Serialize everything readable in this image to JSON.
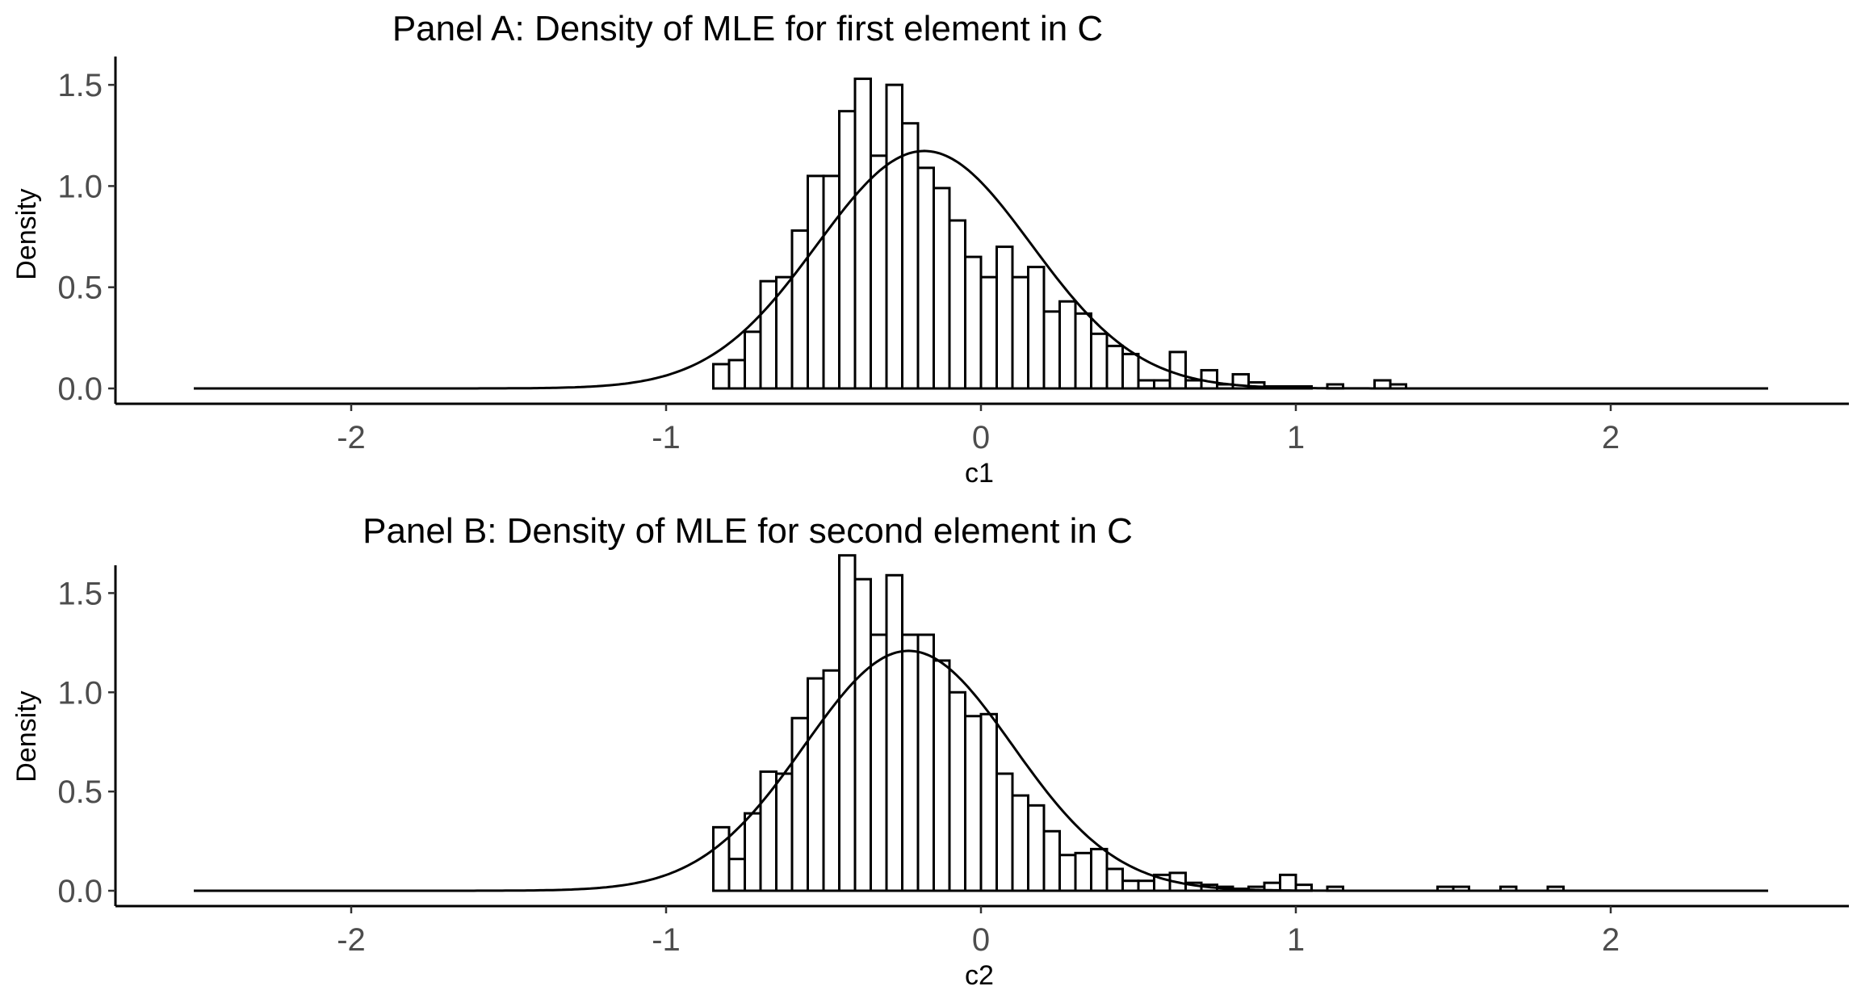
{
  "chart_data": [
    {
      "type": "histogram",
      "title": "Panel A: Density of MLE for first element in C",
      "xlabel": "c1",
      "ylabel": "Density",
      "xlim": [
        -2.5,
        2.5
      ],
      "ylim": [
        0,
        1.6
      ],
      "xticks": [
        -2,
        -1,
        0,
        1,
        2
      ],
      "xtick_labels": [
        "-2",
        "-1",
        "0",
        "1",
        "2"
      ],
      "yticks": [
        0,
        0.5,
        1,
        1.5
      ],
      "ytick_labels": [
        "0.0",
        "0.5",
        "1.0",
        "1.5"
      ],
      "grid": false,
      "bin_width": 0.05,
      "bins": [
        [
          -0.85,
          0.12
        ],
        [
          -0.8,
          0.14
        ],
        [
          -0.75,
          0.28
        ],
        [
          -0.7,
          0.53
        ],
        [
          -0.65,
          0.55
        ],
        [
          -0.6,
          0.78
        ],
        [
          -0.55,
          1.05
        ],
        [
          -0.5,
          1.05
        ],
        [
          -0.45,
          1.37
        ],
        [
          -0.4,
          1.53
        ],
        [
          -0.35,
          1.15
        ],
        [
          -0.3,
          1.5
        ],
        [
          -0.25,
          1.31
        ],
        [
          -0.2,
          1.09
        ],
        [
          -0.15,
          0.99
        ],
        [
          -0.1,
          0.83
        ],
        [
          -0.05,
          0.65
        ],
        [
          0.0,
          0.55
        ],
        [
          0.05,
          0.7
        ],
        [
          0.1,
          0.55
        ],
        [
          0.15,
          0.6
        ],
        [
          0.2,
          0.38
        ],
        [
          0.25,
          0.43
        ],
        [
          0.3,
          0.37
        ],
        [
          0.35,
          0.27
        ],
        [
          0.4,
          0.21
        ],
        [
          0.45,
          0.17
        ],
        [
          0.5,
          0.04
        ],
        [
          0.55,
          0.04
        ],
        [
          0.6,
          0.18
        ],
        [
          0.65,
          0.04
        ],
        [
          0.7,
          0.09
        ],
        [
          0.75,
          0.02
        ],
        [
          0.8,
          0.07
        ],
        [
          0.85,
          0.03
        ],
        [
          0.9,
          0.01
        ],
        [
          0.95,
          0.01
        ],
        [
          1.0,
          0.01
        ],
        [
          1.1,
          0.02
        ],
        [
          1.25,
          0.04
        ],
        [
          1.3,
          0.02
        ]
      ],
      "normal_curve": {
        "mean": -0.18,
        "sd": 0.34
      },
      "curve_range": [
        -2.5,
        2.5
      ]
    },
    {
      "type": "histogram",
      "title": "Panel B: Density of MLE for second element in C",
      "xlabel": "c2",
      "ylabel": "Density",
      "xlim": [
        -2.5,
        2.5
      ],
      "ylim": [
        0,
        1.75
      ],
      "xticks": [
        -2,
        -1,
        0,
        1,
        2
      ],
      "xtick_labels": [
        "-2",
        "-1",
        "0",
        "1",
        "2"
      ],
      "yticks": [
        0,
        0.5,
        1,
        1.5
      ],
      "ytick_labels": [
        "0.0",
        "0.5",
        "1.0",
        "1.5"
      ],
      "grid": false,
      "bin_width": 0.05,
      "bins": [
        [
          -0.85,
          0.32
        ],
        [
          -0.8,
          0.16
        ],
        [
          -0.75,
          0.39
        ],
        [
          -0.7,
          0.6
        ],
        [
          -0.65,
          0.59
        ],
        [
          -0.6,
          0.87
        ],
        [
          -0.55,
          1.07
        ],
        [
          -0.5,
          1.11
        ],
        [
          -0.45,
          1.69
        ],
        [
          -0.4,
          1.57
        ],
        [
          -0.35,
          1.29
        ],
        [
          -0.3,
          1.59
        ],
        [
          -0.25,
          1.29
        ],
        [
          -0.2,
          1.29
        ],
        [
          -0.15,
          1.16
        ],
        [
          -0.1,
          1.0
        ],
        [
          -0.05,
          0.88
        ],
        [
          0.0,
          0.89
        ],
        [
          0.05,
          0.59
        ],
        [
          0.1,
          0.48
        ],
        [
          0.15,
          0.43
        ],
        [
          0.2,
          0.3
        ],
        [
          0.25,
          0.18
        ],
        [
          0.3,
          0.19
        ],
        [
          0.35,
          0.21
        ],
        [
          0.4,
          0.11
        ],
        [
          0.45,
          0.05
        ],
        [
          0.5,
          0.05
        ],
        [
          0.55,
          0.08
        ],
        [
          0.6,
          0.09
        ],
        [
          0.65,
          0.04
        ],
        [
          0.7,
          0.03
        ],
        [
          0.75,
          0.02
        ],
        [
          0.8,
          0.01
        ],
        [
          0.85,
          0.02
        ],
        [
          0.9,
          0.04
        ],
        [
          0.95,
          0.08
        ],
        [
          1.0,
          0.03
        ],
        [
          1.1,
          0.02
        ],
        [
          1.45,
          0.02
        ],
        [
          1.5,
          0.02
        ],
        [
          1.65,
          0.02
        ],
        [
          1.8,
          0.02
        ]
      ],
      "normal_curve": {
        "mean": -0.23,
        "sd": 0.33
      },
      "curve_range": [
        -2.5,
        2.5
      ]
    }
  ]
}
